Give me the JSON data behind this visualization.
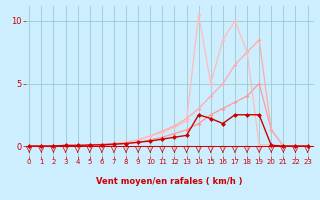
{
  "xlabel": "Vent moyen/en rafales ( km/h )",
  "background_color": "#cceeff",
  "grid_color": "#99cccc",
  "xlim": [
    -0.3,
    23.5
  ],
  "ylim": [
    -0.8,
    11.2
  ],
  "yticks": [
    0,
    5,
    10
  ],
  "xticks": [
    0,
    1,
    2,
    3,
    4,
    5,
    6,
    7,
    8,
    9,
    10,
    11,
    12,
    13,
    14,
    15,
    16,
    17,
    18,
    19,
    20,
    21,
    22,
    23
  ],
  "line_flat": {
    "x": [
      0,
      1,
      2,
      3,
      4,
      5,
      6,
      7,
      8,
      9,
      10,
      11,
      12,
      13,
      14,
      15,
      16,
      17,
      18,
      19,
      20,
      21,
      22,
      23
    ],
    "y": [
      0,
      0,
      0,
      0,
      0,
      0,
      0,
      0,
      0,
      0,
      0,
      0,
      0,
      0,
      0,
      0,
      0,
      0,
      0,
      0,
      0,
      0,
      0,
      0
    ],
    "color": "#ff9999",
    "lw": 0.8,
    "ms": 2.0
  },
  "line_diagonal1": {
    "x": [
      0,
      1,
      2,
      3,
      4,
      5,
      6,
      7,
      8,
      9,
      10,
      11,
      12,
      13,
      14,
      15,
      16,
      17,
      18,
      19,
      20,
      21,
      22,
      23
    ],
    "y": [
      0,
      0,
      0,
      0,
      0,
      0,
      0,
      0.1,
      0.2,
      0.3,
      0.5,
      0.7,
      1.0,
      1.3,
      1.8,
      2.5,
      3.0,
      3.5,
      4.0,
      5.0,
      1.3,
      0,
      0,
      0
    ],
    "color": "#ff9999",
    "lw": 0.9,
    "ms": 2.0
  },
  "line_diagonal2": {
    "x": [
      0,
      1,
      2,
      3,
      4,
      5,
      6,
      7,
      8,
      9,
      10,
      11,
      12,
      13,
      14,
      15,
      16,
      17,
      18,
      19,
      20,
      21,
      22,
      23
    ],
    "y": [
      0,
      0,
      0,
      0,
      0,
      0,
      0.1,
      0.2,
      0.3,
      0.5,
      0.8,
      1.2,
      1.6,
      2.2,
      3.0,
      4.0,
      5.0,
      6.5,
      7.5,
      8.5,
      1.3,
      0,
      0,
      0
    ],
    "color": "#ffaaaa",
    "lw": 0.9,
    "ms": 2.0
  },
  "line_jagged": {
    "x": [
      0,
      1,
      2,
      3,
      4,
      5,
      6,
      7,
      8,
      9,
      10,
      11,
      12,
      13,
      14,
      15,
      16,
      17,
      18,
      19,
      20,
      21,
      22,
      23
    ],
    "y": [
      0,
      0,
      0,
      0.05,
      0.05,
      0.1,
      0.15,
      0.2,
      0.3,
      0.5,
      0.8,
      1.1,
      1.5,
      2.0,
      10.5,
      5.0,
      8.5,
      10.0,
      7.5,
      0.1,
      0.1,
      0,
      0,
      0
    ],
    "color": "#ffbbbb",
    "lw": 0.9,
    "ms": 2.0
  },
  "line_dark": {
    "x": [
      0,
      1,
      2,
      3,
      4,
      5,
      6,
      7,
      8,
      9,
      10,
      11,
      12,
      13,
      14,
      15,
      16,
      17,
      18,
      19,
      20,
      21,
      22,
      23
    ],
    "y": [
      0,
      0,
      0,
      0.05,
      0.05,
      0.08,
      0.1,
      0.15,
      0.2,
      0.3,
      0.4,
      0.55,
      0.7,
      0.85,
      2.5,
      2.2,
      1.8,
      2.5,
      2.5,
      2.5,
      0.05,
      0,
      0,
      0
    ],
    "color": "#cc0000",
    "lw": 1.0,
    "ms": 2.5
  }
}
